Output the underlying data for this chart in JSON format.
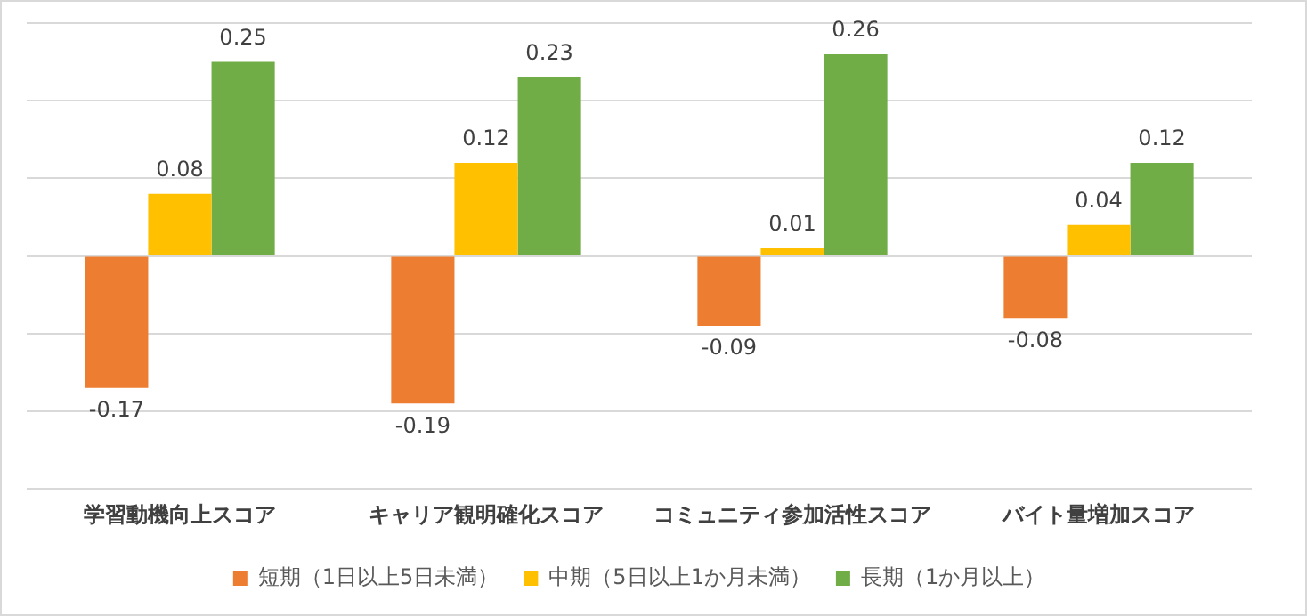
{
  "chart_data": {
    "type": "bar",
    "categories": [
      "学習動機向上スコア",
      "キャリア観明確化スコア",
      "コミュニティ参加活性スコア",
      "バイト量増加スコア"
    ],
    "series": [
      {
        "name": "短期（1日以上5日未満）",
        "color": "#ed7d31",
        "values": [
          -0.17,
          -0.19,
          -0.09,
          -0.08
        ]
      },
      {
        "name": "中期（5日以上1か月未満）",
        "color": "#ffc000",
        "values": [
          0.08,
          0.12,
          0.01,
          0.04
        ]
      },
      {
        "name": "長期（1か月以上）",
        "color": "#70ad47",
        "values": [
          0.25,
          0.23,
          0.26,
          0.12
        ]
      }
    ],
    "ylim": [
      -0.3,
      0.3
    ],
    "yticks": [
      {
        "value": -0.3,
        "label": null
      },
      {
        "value": -0.2,
        "label": null
      },
      {
        "value": -0.1,
        "label": null
      },
      {
        "value": 0,
        "label": null
      },
      {
        "value": 0.1,
        "label": null
      },
      {
        "value": 0.2,
        "label": null
      },
      {
        "value": 0.3,
        "label": null
      }
    ],
    "tick_labels": "x",
    "grid": "y",
    "legend": "bottom",
    "data_labels": true
  }
}
